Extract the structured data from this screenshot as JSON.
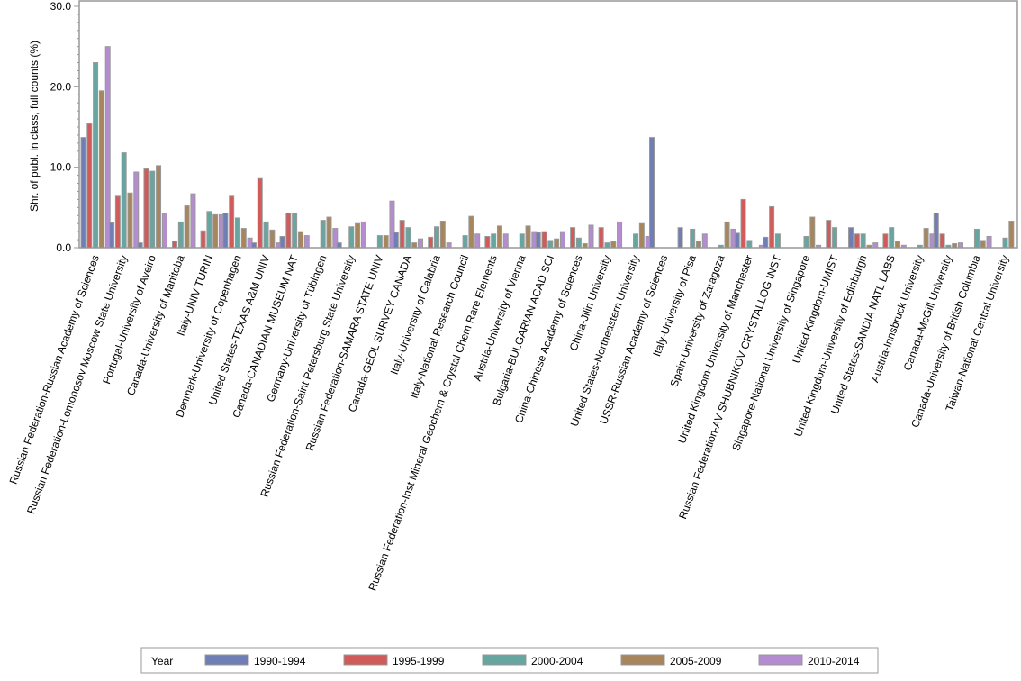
{
  "chart_data": {
    "type": "bar",
    "title": "",
    "xlabel": "",
    "ylabel": "Shr. of publ. in class, full counts (%)",
    "ylim": [
      0,
      30
    ],
    "yticks": [
      "0.0",
      "10.0",
      "20.0",
      "30.0"
    ],
    "grid": false,
    "legend_title": "Year",
    "legend_position": "bottom",
    "categories": [
      "Russian Federation-Russian Academy of Sciences",
      "Russian Federation-Lomonosov Moscow State University",
      "Portugal-University of Aveiro",
      "Canada-University of Manitoba",
      "Italy-UNIV TURIN",
      "Denmark-University of Copenhagen",
      "United States-TEXAS A&M UNIV",
      "Canada-CANADIAN MUSEUM NAT",
      "Germany-University of Tübingen",
      "Russian Federation-Saint Petersburg State University",
      "Russian Federation-SAMARA STATE UNIV",
      "Canada-GEOL SURVEY CANADA",
      "Italy-University of Calabria",
      "Italy-National Research Council",
      "Russian Federation-Inst Mineral Geochem & Crystal Chem Rare Elements",
      "Austria-University of Vienna",
      "Bulgaria-BULGARIAN ACAD SCI",
      "China-Chinese Academy of Sciences",
      "China-Jilin University",
      "United States-Northeastern University",
      "USSR-Russian Academy of Sciences",
      "Italy-University of Pisa",
      "Spain-University of Zaragoza",
      "United Kingdom-University of Manchester",
      "Russian Federation-AV SHUBNIKOV CRYSTALLOG INST",
      "Singapore-National University of Singapore",
      "United Kingdom-UMIST",
      "United Kingdom-University of Edinburgh",
      "United States-SANDIA NATL LABS",
      "Austria-Innsbruck University",
      "Canada-McGill University",
      "Canada-University of British Columbia",
      "Taiwan-National Central University"
    ],
    "series": [
      {
        "name": "1990-1994",
        "color": "#6f7eb5",
        "values": [
          13.7,
          3.1,
          0.6,
          0,
          0,
          4.3,
          0.6,
          1.4,
          0,
          0.6,
          0,
          1.9,
          0,
          0,
          0,
          0,
          1.9,
          0,
          0,
          0,
          13.7,
          2.5,
          0,
          1.8,
          1.3,
          0,
          0,
          2.5,
          0,
          0,
          4.3,
          0,
          0
        ]
      },
      {
        "name": "1995-1999",
        "color": "#d05b5b",
        "values": [
          15.4,
          6.4,
          9.8,
          0.8,
          2.1,
          6.4,
          8.6,
          4.3,
          0,
          0,
          0,
          3.4,
          1.3,
          0,
          1.4,
          0,
          2.0,
          2.5,
          2.5,
          0,
          0,
          0,
          0,
          6.0,
          5.1,
          0,
          3.4,
          1.7,
          1.7,
          0,
          1.7,
          0,
          0
        ]
      },
      {
        "name": "2000-2004",
        "color": "#66a5a0",
        "values": [
          23.0,
          11.8,
          9.5,
          3.2,
          4.5,
          3.7,
          3.2,
          4.3,
          3.4,
          2.6,
          1.5,
          2.5,
          2.6,
          1.5,
          1.7,
          1.7,
          0.9,
          1.2,
          0.6,
          1.7,
          0,
          2.3,
          0.3,
          0.9,
          1.7,
          1.4,
          2.5,
          1.7,
          2.5,
          0.3,
          0.3,
          2.3,
          1.2
        ]
      },
      {
        "name": "2005-2009",
        "color": "#a8865d",
        "values": [
          19.5,
          6.8,
          10.2,
          5.2,
          4.1,
          2.4,
          2.2,
          2.0,
          3.8,
          3.0,
          1.5,
          0.6,
          3.3,
          3.9,
          2.7,
          2.7,
          1.1,
          0.5,
          0.8,
          3.0,
          0,
          0.8,
          3.2,
          0,
          0,
          3.8,
          0,
          0.3,
          0.8,
          2.4,
          0.5,
          0.9,
          3.3
        ]
      },
      {
        "name": "2010-2014",
        "color": "#b48cd0",
        "values": [
          25.0,
          9.4,
          4.3,
          6.7,
          4.1,
          1.2,
          0.6,
          1.5,
          2.4,
          3.2,
          5.8,
          1.1,
          0.6,
          1.7,
          1.7,
          2.0,
          2.0,
          2.8,
          3.2,
          1.4,
          0,
          1.7,
          2.3,
          0.3,
          0,
          0.3,
          0,
          0.6,
          0.3,
          1.7,
          0.6,
          1.4,
          0
        ]
      }
    ]
  }
}
